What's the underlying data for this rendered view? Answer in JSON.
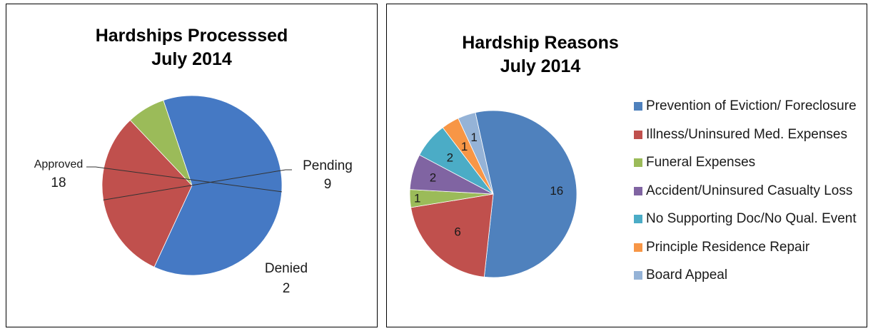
{
  "charts": {
    "left": {
      "title_line1": "Hardships Processsed",
      "title_line2": "July 2014"
    },
    "right": {
      "title_line1": "Hardship Reasons",
      "title_line2": "July 2014"
    }
  },
  "chart_data": [
    {
      "type": "pie",
      "title": "Hardships Processsed July 2014",
      "categories": [
        "Approved",
        "Pending",
        "Denied"
      ],
      "values": [
        18,
        9,
        2
      ],
      "colors": [
        "#4579c4",
        "#c0504d",
        "#9bbb59"
      ],
      "data_labels": "category and value, outside with leader lines"
    },
    {
      "type": "pie",
      "title": "Hardship Reasons July 2014",
      "categories": [
        "Prevention of Eviction/ Foreclosure",
        "Illness/Uninsured Med. Expenses",
        "Funeral Expenses",
        "Accident/Uninsured Casualty Loss",
        "No Supporting Doc/No Qual. Event",
        "Principle Residence Repair",
        "Board Appeal"
      ],
      "values": [
        16,
        6,
        1,
        2,
        2,
        1,
        1
      ],
      "colors": [
        "#4f81bd",
        "#c0504d",
        "#9bbb59",
        "#8064a2",
        "#4bacc6",
        "#f79646",
        "#95b3d7"
      ],
      "legend": "right",
      "data_labels": "value, inside slices"
    }
  ]
}
